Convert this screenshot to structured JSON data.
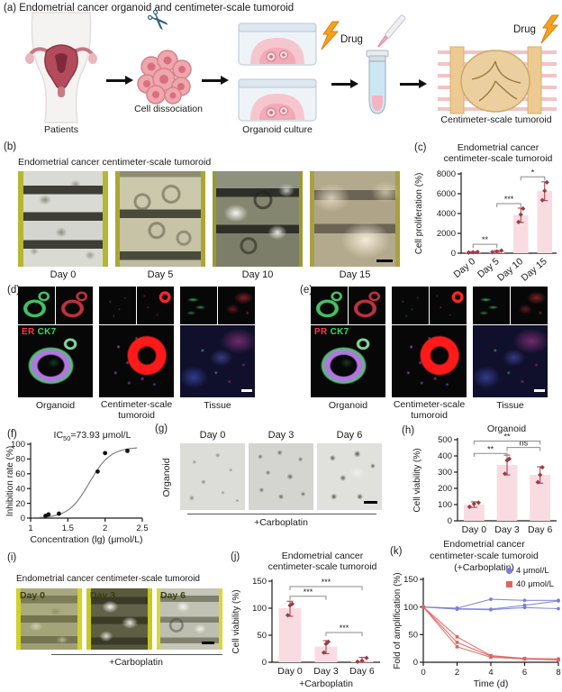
{
  "panels": {
    "a": {
      "label": "(a)",
      "title": "Endometrial cancer organoid and centimeter-scale tumoroid",
      "caption_patients": "Patients",
      "caption_dissociation": "Cell dissociation",
      "caption_culture": "Organoid culture",
      "caption_tumoroid": "Centimeter-scale tumoroid",
      "drug_label": "Drug"
    },
    "b": {
      "label": "(b)",
      "title": "Endometrial cancer centimeter-scale tumoroid",
      "days": [
        "Day 0",
        "Day 5",
        "Day 10",
        "Day 15"
      ]
    },
    "c": {
      "label": "(c)",
      "title_line1": "Endometrial cancer",
      "title_line2": "centimeter-scale tumoroid"
    },
    "d": {
      "label": "(d)",
      "marker_red": "ER",
      "marker_green": "CK7",
      "caption_1": "Organoid",
      "caption_2": "Centimeter-scale tumoroid",
      "caption_3": "Tissue"
    },
    "e": {
      "label": "(e)",
      "marker_red": "PR",
      "marker_green": "CK7",
      "caption_1": "Organoid",
      "caption_2": "Centimeter-scale tumoroid",
      "caption_3": "Tissue"
    },
    "f": {
      "label": "(f)",
      "ic_prefix": "IC",
      "ic_sub": "50",
      "ic_value": "=73.93 μmol/L"
    },
    "g": {
      "label": "(g)",
      "side_label": "Organoid",
      "days": [
        "Day 0",
        "Day 3",
        "Day 6"
      ],
      "treatment": "+Carboplatin"
    },
    "h": {
      "label": "(h)",
      "title": "Organoid"
    },
    "i": {
      "label": "(i)",
      "title": "Endometrial cancer centimeter-scale tumoroid",
      "days": [
        "Day 0",
        "Day 3",
        "Day 6"
      ],
      "treatment": "+Carboplatin"
    },
    "j": {
      "label": "(j)",
      "title_line1": "Endometrial cancer",
      "title_line2": "centimeter-scale tumoroid"
    },
    "k": {
      "label": "(k)",
      "title_line1": "Endometrial cancer",
      "title_line2": "centimeter-scale tumoroid",
      "title_line3": "(+Carboplatin)",
      "legend": [
        {
          "label": "4 μmol/L"
        },
        {
          "label": "40 μmol/L"
        }
      ]
    }
  },
  "chart_data": [
    {
      "id": "c",
      "type": "bar",
      "title": "Endometrial cancer centimeter-scale tumoroid",
      "ylabel": "Cell proliferation (%)",
      "ylim": [
        0,
        8000
      ],
      "yticks": [
        0,
        2000,
        4000,
        6000,
        8000
      ],
      "categories": [
        "Day 0",
        "Day 5",
        "Day 10",
        "Day 15"
      ],
      "values": [
        100,
        180,
        3850,
        6300
      ],
      "points": [
        [
          70,
          95,
          125
        ],
        [
          110,
          175,
          260
        ],
        [
          3150,
          3900,
          4500
        ],
        [
          5350,
          6300,
          7150
        ]
      ],
      "errors": [
        [
          40,
          160
        ],
        [
          90,
          270
        ],
        [
          3100,
          4550
        ],
        [
          5300,
          7200
        ]
      ],
      "sig": [
        {
          "i": 0,
          "j": 1,
          "label": "**",
          "y": 900
        },
        {
          "i": 1,
          "j": 2,
          "label": "***",
          "y": 5000
        },
        {
          "i": 2,
          "j": 3,
          "label": "*",
          "y": 7700
        }
      ],
      "rotate_xlabels": true
    },
    {
      "id": "f",
      "type": "scatter",
      "title": "IC50=73.93 μmol/L",
      "xlabel": "Concentration (lg) (μmol/L)",
      "ylabel": "Inhibition rate (%)",
      "xlim": [
        1.0,
        2.5
      ],
      "xticks": [
        1.0,
        1.5,
        2.0,
        2.5
      ],
      "ylim": [
        0,
        100
      ],
      "yticks": [
        0,
        20,
        40,
        60,
        80,
        100
      ],
      "points": [
        [
          1.2,
          3
        ],
        [
          1.24,
          5
        ],
        [
          1.38,
          6
        ],
        [
          1.9,
          63
        ],
        [
          2.0,
          88
        ],
        [
          2.3,
          91
        ]
      ],
      "fit_sigmoid": {
        "top": 96,
        "logIC50": 1.79,
        "slope": 3.1
      }
    },
    {
      "id": "h",
      "type": "bar",
      "title": "Organoid",
      "ylabel": "Cell viability (%)",
      "ylim": [
        0,
        500
      ],
      "yticks": [
        0,
        100,
        200,
        300,
        400,
        500
      ],
      "categories": [
        "Day 0",
        "Day 3",
        "Day 6"
      ],
      "values": [
        100,
        345,
        283
      ],
      "points": [
        [
          86,
          105,
          112
        ],
        [
          290,
          372,
          382
        ],
        [
          238,
          283,
          330
        ]
      ],
      "errors": [
        [
          83,
          117
        ],
        [
          283,
          405
        ],
        [
          232,
          333
        ]
      ],
      "sig": [
        {
          "i": 0,
          "j": 1,
          "label": "**",
          "y": 415
        },
        {
          "i": 1,
          "j": 2,
          "label": "ns",
          "y": 452
        },
        {
          "i": 0,
          "j": 2,
          "label": "**",
          "y": 492
        }
      ]
    },
    {
      "id": "j",
      "type": "bar",
      "title": "Endometrial cancer centimeter-scale tumoroid",
      "ylabel": "Cell viability (%)",
      "xlabel": "+Carboplatin",
      "ylim": [
        0,
        150
      ],
      "yticks": [
        0,
        50,
        100,
        150
      ],
      "categories": [
        "Day 0",
        "Day 3",
        "Day 6"
      ],
      "values": [
        100,
        29,
        3
      ],
      "points": [
        [
          87,
          105,
          108
        ],
        [
          18,
          34,
          38
        ],
        [
          1,
          3,
          8
        ]
      ],
      "errors": [
        [
          85,
          113
        ],
        [
          16,
          40
        ],
        [
          0,
          9
        ]
      ],
      "sig": [
        {
          "i": 0,
          "j": 1,
          "label": "***",
          "y": 122
        },
        {
          "i": 1,
          "j": 2,
          "label": "***",
          "y": 55
        },
        {
          "i": 0,
          "j": 2,
          "label": "***",
          "y": 140
        }
      ]
    },
    {
      "id": "k",
      "type": "line",
      "title": "Endometrial cancer centimeter-scale tumoroid (+Carboplatin)",
      "xlabel": "Time (d)",
      "ylabel": "Fold of amplification (%)",
      "xlim": [
        0,
        8
      ],
      "xticks": [
        0,
        2,
        4,
        6,
        8
      ],
      "ylim": [
        0,
        150
      ],
      "yticks": [
        0,
        50,
        100,
        150
      ],
      "legend_position": "top-right",
      "series": [
        {
          "name": "4 μmol/L",
          "color": "#7b7fd8",
          "marker": "circle",
          "lines": [
            [
              [
                0,
                100
              ],
              [
                2,
                98
              ],
              [
                4,
                114
              ],
              [
                6,
                112
              ],
              [
                8,
                112
              ]
            ],
            [
              [
                0,
                100
              ],
              [
                2,
                97
              ],
              [
                4,
                96
              ],
              [
                6,
                103
              ],
              [
                8,
                111
              ]
            ],
            [
              [
                0,
                100
              ],
              [
                2,
                96
              ],
              [
                4,
                95
              ],
              [
                6,
                99
              ],
              [
                8,
                97
              ]
            ]
          ]
        },
        {
          "name": "40 μmol/L",
          "color": "#e0645f",
          "marker": "square",
          "lines": [
            [
              [
                0,
                100
              ],
              [
                2,
                46
              ],
              [
                4,
                12
              ],
              [
                6,
                7
              ],
              [
                8,
                6
              ]
            ],
            [
              [
                0,
                100
              ],
              [
                2,
                36
              ],
              [
                4,
                11
              ],
              [
                6,
                6
              ],
              [
                8,
                5
              ]
            ],
            [
              [
                0,
                100
              ],
              [
                2,
                28
              ],
              [
                4,
                9
              ],
              [
                6,
                6
              ],
              [
                8,
                4
              ]
            ]
          ]
        }
      ]
    }
  ],
  "colors": {
    "bar_fill": "#f8dce1",
    "point": "#9e3a44",
    "axis": "#1a1a1a",
    "sig_line": "#8a8a8a",
    "blue_series": "#7b7fd8",
    "red_series": "#e0645f",
    "bolt": "#f6a31c",
    "er_red": "#ff3545",
    "ck7_green": "#33dd66"
  }
}
